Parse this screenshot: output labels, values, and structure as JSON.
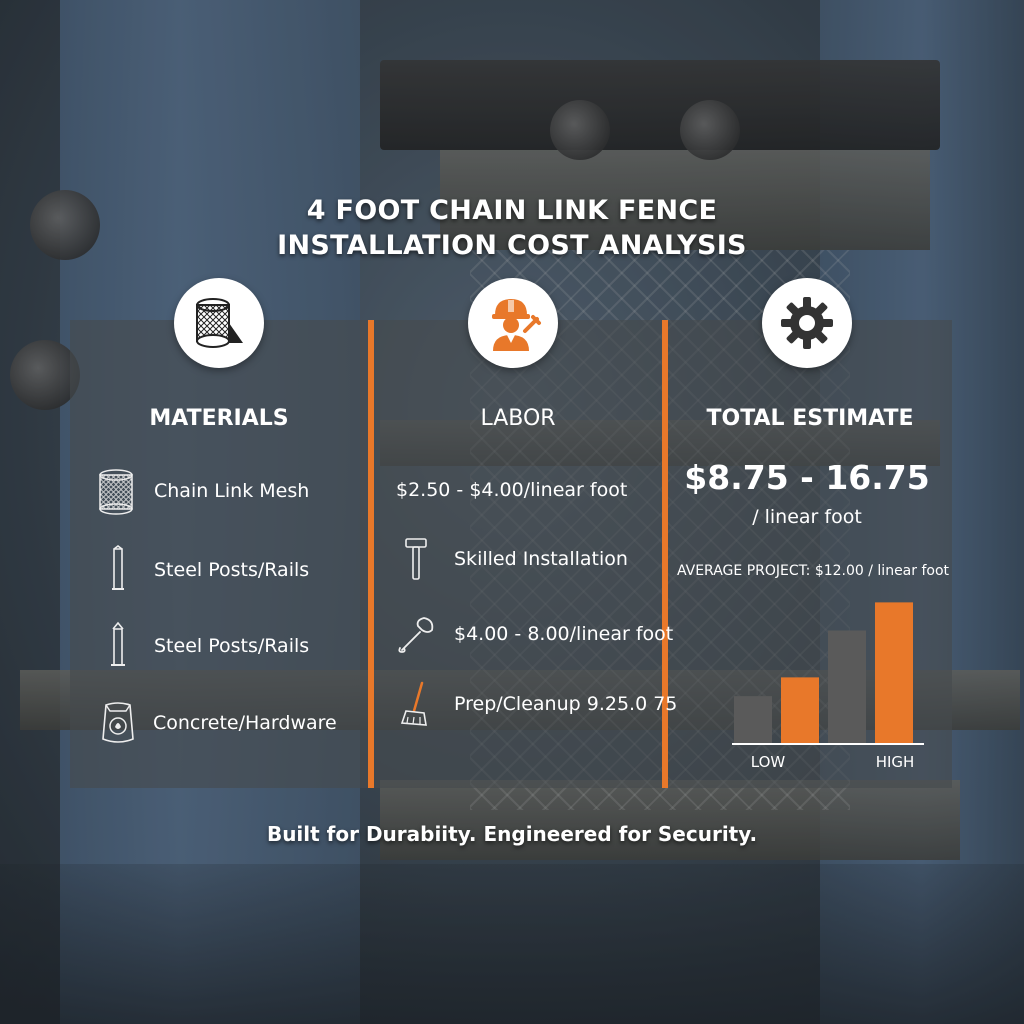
{
  "title": {
    "line1": "4 FOOT CHAIN LINK FENCE",
    "line2": "INSTALLATION COST ANALYSIS"
  },
  "materials": {
    "heading": "MATERIALS",
    "icon": "fence-roll-icon",
    "items": [
      {
        "label": "Chain Link Mesh",
        "icon": "mesh-roll-icon"
      },
      {
        "label": "Steel Posts/Rails",
        "icon": "post-icon"
      },
      {
        "label": "Steel Posts/Rails",
        "icon": "post-icon"
      },
      {
        "label": "Concrete/Hardware",
        "icon": "concrete-bag-icon"
      }
    ]
  },
  "labor": {
    "heading": "LABOR",
    "icon": "worker-icon",
    "rate": "$2.50 - $4.00/linear foot",
    "items": [
      {
        "label": "Skilled Installation",
        "icon": "hammer-icon"
      },
      {
        "label": "$4.00 - 8.00/linear foot",
        "icon": "wrench-icon"
      },
      {
        "label": "Prep/Cleanup 9.25.0 75",
        "icon": "broom-icon"
      }
    ]
  },
  "total": {
    "heading": "TOTAL ESTIMATE",
    "icon": "gear-icon",
    "range": "$8.75 - 16.75",
    "unit": "/ linear foot",
    "average": "AVERAGE PROJECT: $12.00 / linear foot"
  },
  "chart_data": {
    "type": "bar",
    "categories": [
      "LOW",
      "",
      "",
      "HIGH"
    ],
    "values": [
      1.0,
      1.4,
      2.4,
      3.0
    ],
    "colors": [
      "#5a5a5a",
      "#e8782a",
      "#5a5a5a",
      "#e8782a"
    ],
    "tick_labels": {
      "low": "LOW",
      "high": "HIGH"
    },
    "ylim": [
      0,
      3.2
    ]
  },
  "tagline": "Built for Durabiity. Engineered for Security.",
  "colors": {
    "accent": "#e8782a",
    "panel": "#464a4e",
    "icon_circle": "#ffffff",
    "text": "#ffffff"
  }
}
